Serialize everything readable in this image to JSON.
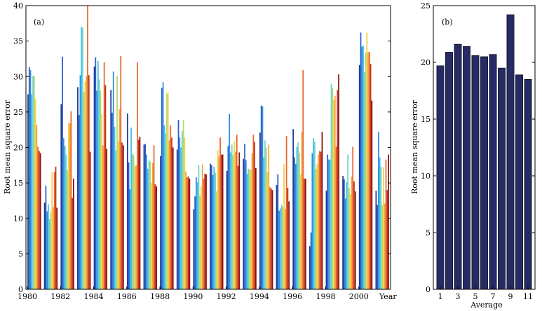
{
  "chart_data": [
    {
      "type": "bar",
      "panel_label": "(a)",
      "ylabel": "Root  mean  square  error",
      "xlabel": "Year",
      "ylim": [
        0,
        40
      ],
      "yticks": [
        0,
        5,
        10,
        15,
        20,
        25,
        30,
        35,
        40
      ],
      "x_tick_labels": [
        "1980",
        "1982",
        "1984",
        "1986",
        "1988",
        "1990",
        "1992",
        "1994",
        "1996",
        "1998",
        "2000"
      ],
      "n_series": 11,
      "series_colors": [
        "#1f3a93",
        "#2a5fc7",
        "#2f8de0",
        "#3fc0e6",
        "#6fd3c8",
        "#b9d76a",
        "#f0d24a",
        "#f3a43a",
        "#e8672a",
        "#c9321f",
        "#8a1010"
      ],
      "categories": [
        "1980",
        "1981",
        "1982",
        "1983",
        "1984",
        "1985",
        "1986",
        "1987",
        "1988",
        "1989",
        "1990",
        "1991",
        "1992",
        "1993",
        "1994",
        "1995",
        "1996",
        "1997",
        "1998",
        "1999",
        "2000",
        "2001"
      ],
      "values": [
        [
          27.5,
          31.3,
          30.9,
          27.5,
          30.1,
          30.1,
          26.8,
          23.2,
          20.1,
          19.5,
          19.2
        ],
        [
          12.2,
          14.6,
          11.0,
          12.0,
          9.9,
          11.0,
          16.5,
          11.6,
          16.5,
          17.3,
          11.5
        ],
        [
          26.1,
          32.8,
          21.3,
          20.2,
          19.0,
          16.8,
          23.4,
          23.4,
          25.1,
          12.9,
          15.6
        ],
        [
          28.5,
          24.6,
          30.2,
          37.0,
          36.9,
          27.8,
          29.3,
          30.1,
          40.0,
          30.2,
          19.4
        ],
        [
          31.4,
          32.7,
          28.0,
          32.2,
          29.6,
          28.0,
          24.7,
          20.3,
          32.0,
          28.8,
          19.8
        ],
        [
          28.1,
          24.9,
          30.7,
          22.9,
          19.6,
          30.1,
          20.9,
          25.4,
          32.9,
          20.7,
          20.3
        ],
        [
          24.8,
          17.9,
          14.1,
          22.8,
          19.1,
          18.9,
          17.3,
          17.5,
          32.0,
          21.1,
          21.5
        ],
        [
          20.4,
          20.5,
          19.0,
          17.0,
          18.2,
          18.0,
          15.0,
          17.8,
          20.3,
          14.8,
          14.5
        ],
        [
          18.8,
          28.4,
          29.2,
          23.1,
          22.0,
          27.6,
          27.8,
          21.0,
          23.1,
          21.4,
          20.0
        ],
        [
          19.7,
          23.9,
          21.4,
          20.0,
          22.3,
          23.9,
          21.4,
          16.6,
          15.8,
          15.9,
          15.6
        ],
        [
          11.3,
          13.1,
          15.8,
          15.1,
          17.5,
          13.2,
          14.5,
          17.6,
          15.6,
          16.3,
          16.2
        ],
        [
          17.7,
          17.5,
          16.1,
          17.3,
          16.4,
          13.8,
          19.6,
          18.7,
          21.4,
          19.0,
          19.0
        ],
        [
          16.7,
          20.2,
          24.7,
          19.3,
          20.4,
          18.9,
          20.8,
          19.4,
          21.8,
          17.4,
          19.3
        ],
        [
          18.4,
          20.5,
          18.2,
          16.3,
          17.0,
          16.9,
          16.8,
          19.2,
          21.8,
          20.8,
          17.1
        ],
        [
          22.1,
          25.9,
          25.8,
          18.6,
          21.0,
          20.0,
          16.5,
          20.4,
          14.4,
          14.2,
          14.0
        ],
        [
          14.7,
          16.2,
          11.1,
          11.4,
          11.9,
          11.6,
          17.7,
          11.3,
          21.6,
          14.3,
          12.4
        ],
        [
          22.6,
          18.6,
          17.7,
          20.1,
          20.7,
          19.2,
          16.2,
          22.2,
          30.9,
          15.6,
          15.6
        ],
        [
          6.1,
          8.0,
          19.2,
          21.3,
          20.8,
          17.0,
          17.6,
          19.0,
          19.5,
          19.4,
          22.2
        ],
        [
          13.9,
          19.0,
          18.3,
          18.3,
          29.0,
          28.4,
          26.7,
          27.3,
          20.1,
          28.1,
          30.3
        ],
        [
          16.0,
          15.5,
          12.8,
          15.1,
          19.0,
          14.3,
          13.4,
          15.9,
          20.1,
          15.2,
          13.8
        ],
        [
          31.6,
          36.2,
          34.2,
          34.4,
          30.6,
          33.4,
          36.2,
          33.4,
          33.5,
          31.8,
          26.6
        ],
        [
          13.9,
          11.9,
          22.2,
          18.6,
          17.3,
          11.9,
          17.2,
          12.1,
          18.3,
          14.0,
          19.0
        ]
      ]
    },
    {
      "type": "bar",
      "panel_label": "(b)",
      "ylabel": "Root  mean  square  error",
      "xlabel": "Average",
      "ylim": [
        0,
        25
      ],
      "yticks": [
        0,
        5,
        10,
        15,
        20,
        25
      ],
      "categories": [
        "1",
        "2",
        "3",
        "4",
        "5",
        "6",
        "7",
        "8",
        "9",
        "10",
        "11"
      ],
      "x_tick_labels": [
        "1",
        "3",
        "5",
        "7",
        "9",
        "11"
      ],
      "bar_color": "#262b66",
      "values": [
        19.7,
        20.9,
        21.6,
        21.4,
        20.6,
        20.5,
        20.7,
        19.5,
        24.2,
        18.9,
        18.5
      ]
    }
  ]
}
